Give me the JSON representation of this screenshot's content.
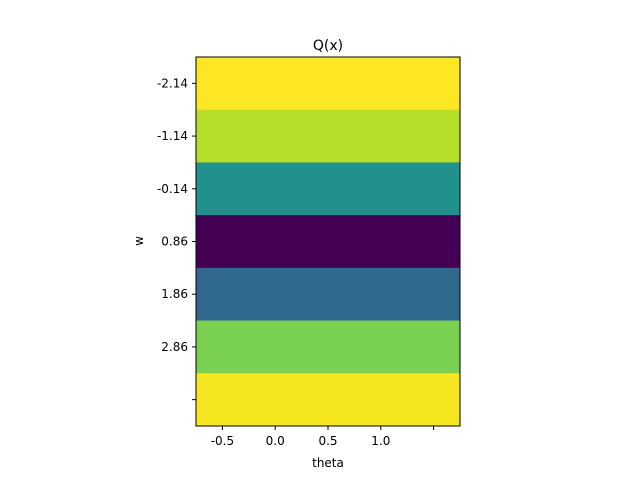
{
  "chart_data": {
    "type": "heatmap",
    "title": "Q(x)",
    "xlabel": "theta",
    "ylabel": "w",
    "x_ticks": [
      {
        "value": -0.5,
        "label": "-0.5"
      },
      {
        "value": 0.0,
        "label": "0.0"
      },
      {
        "value": 0.5,
        "label": "0.5"
      },
      {
        "value": 1.0,
        "label": "1.0"
      },
      {
        "value": 1.5,
        "label": ""
      }
    ],
    "y_ticks": [
      "-2.14",
      "-1.14",
      "-0.14",
      "0.86",
      "1.86",
      "2.86",
      ""
    ],
    "xlim": [
      -0.75,
      1.75
    ],
    "colormap": "viridis",
    "rows": [
      {
        "tick": "-2.14",
        "value": 1.0,
        "color": "#fde725"
      },
      {
        "tick": "-1.14",
        "value": 0.86,
        "color": "#b5de2b"
      },
      {
        "tick": "-0.14",
        "value": 0.45,
        "color": "#21918c"
      },
      {
        "tick": "0.86",
        "value": 0.0,
        "color": "#440154"
      },
      {
        "tick": "1.86",
        "value": 0.3,
        "color": "#31688e"
      },
      {
        "tick": "2.86",
        "value": 0.78,
        "color": "#7ad151"
      },
      {
        "tick": "",
        "value": 0.97,
        "color": "#f6e620"
      }
    ]
  }
}
